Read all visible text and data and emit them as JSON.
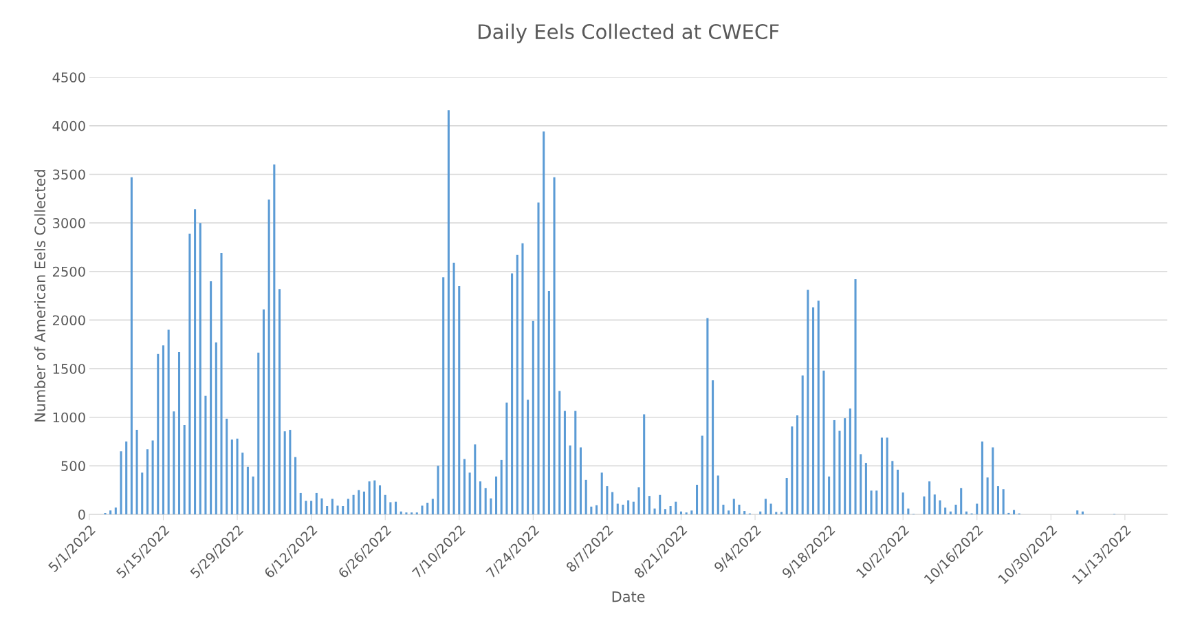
{
  "chart_data": {
    "type": "bar",
    "title": "Daily Eels Collected at CWECF",
    "xlabel": "Date",
    "ylabel": "Number of American Eels Collected",
    "x": [
      "2022-05-04",
      "2022-05-05",
      "2022-05-06",
      "2022-05-07",
      "2022-05-08",
      "2022-05-09",
      "2022-05-10",
      "2022-05-11",
      "2022-05-12",
      "2022-05-13",
      "2022-05-14",
      "2022-05-15",
      "2022-05-16",
      "2022-05-17",
      "2022-05-18",
      "2022-05-19",
      "2022-05-20",
      "2022-05-21",
      "2022-05-22",
      "2022-05-23",
      "2022-05-24",
      "2022-05-25",
      "2022-05-26",
      "2022-05-27",
      "2022-05-28",
      "2022-05-29",
      "2022-05-30",
      "2022-05-31",
      "2022-06-01",
      "2022-06-02",
      "2022-06-03",
      "2022-06-04",
      "2022-06-05",
      "2022-06-06",
      "2022-06-07",
      "2022-06-08",
      "2022-06-09",
      "2022-06-10",
      "2022-06-11",
      "2022-06-12",
      "2022-06-13",
      "2022-06-14",
      "2022-06-15",
      "2022-06-16",
      "2022-06-17",
      "2022-06-18",
      "2022-06-19",
      "2022-06-20",
      "2022-06-21",
      "2022-06-22",
      "2022-06-23",
      "2022-06-24",
      "2022-06-25",
      "2022-06-26",
      "2022-06-27",
      "2022-06-28",
      "2022-06-29",
      "2022-06-30",
      "2022-07-01",
      "2022-07-02",
      "2022-07-03",
      "2022-07-04",
      "2022-07-05",
      "2022-07-06",
      "2022-07-07",
      "2022-07-08",
      "2022-07-09",
      "2022-07-10",
      "2022-07-11",
      "2022-07-12",
      "2022-07-13",
      "2022-07-14",
      "2022-07-15",
      "2022-07-16",
      "2022-07-17",
      "2022-07-18",
      "2022-07-19",
      "2022-07-20",
      "2022-07-21",
      "2022-07-22",
      "2022-07-23",
      "2022-07-24",
      "2022-07-25",
      "2022-07-26",
      "2022-07-27",
      "2022-07-28",
      "2022-07-29",
      "2022-07-30",
      "2022-07-31",
      "2022-08-01",
      "2022-08-02",
      "2022-08-03",
      "2022-08-04",
      "2022-08-05",
      "2022-08-06",
      "2022-08-07",
      "2022-08-08",
      "2022-08-09",
      "2022-08-10",
      "2022-08-11",
      "2022-08-12",
      "2022-08-13",
      "2022-08-14",
      "2022-08-15",
      "2022-08-16",
      "2022-08-17",
      "2022-08-18",
      "2022-08-19",
      "2022-08-20",
      "2022-08-21",
      "2022-08-22",
      "2022-08-23",
      "2022-08-24",
      "2022-08-25",
      "2022-08-26",
      "2022-08-27",
      "2022-08-28",
      "2022-08-29",
      "2022-08-30",
      "2022-08-31",
      "2022-09-01",
      "2022-09-02",
      "2022-09-03",
      "2022-09-04",
      "2022-09-05",
      "2022-09-06",
      "2022-09-07",
      "2022-09-08",
      "2022-09-09",
      "2022-09-10",
      "2022-09-11",
      "2022-09-12",
      "2022-09-13",
      "2022-09-14",
      "2022-09-15",
      "2022-09-16",
      "2022-09-17",
      "2022-09-18",
      "2022-09-19",
      "2022-09-20",
      "2022-09-21",
      "2022-09-22",
      "2022-09-23",
      "2022-09-24",
      "2022-09-25",
      "2022-09-26",
      "2022-09-27",
      "2022-09-28",
      "2022-09-29",
      "2022-09-30",
      "2022-10-01",
      "2022-10-02",
      "2022-10-03",
      "2022-10-04",
      "2022-10-05",
      "2022-10-06",
      "2022-10-07",
      "2022-10-08",
      "2022-10-09",
      "2022-10-10",
      "2022-10-11",
      "2022-10-12",
      "2022-10-13",
      "2022-10-14",
      "2022-10-15",
      "2022-10-16",
      "2022-10-17",
      "2022-10-18",
      "2022-10-19",
      "2022-10-20",
      "2022-10-21",
      "2022-10-22",
      "2022-10-23",
      "2022-10-24",
      "2022-11-04",
      "2022-11-05",
      "2022-11-11"
    ],
    "series": [
      {
        "color": "#5b9bd5",
        "values": [
          15,
          40,
          70,
          650,
          750,
          3470,
          870,
          430,
          670,
          760,
          1650,
          1740,
          1900,
          1060,
          1670,
          920,
          2890,
          3140,
          3000,
          1220,
          2400,
          1770,
          2690,
          985,
          770,
          780,
          635,
          490,
          390,
          1665,
          2110,
          3240,
          3600,
          2320,
          855,
          870,
          590,
          220,
          140,
          140,
          220,
          165,
          85,
          160,
          90,
          85,
          160,
          200,
          250,
          235,
          340,
          350,
          300,
          200,
          125,
          130,
          30,
          20,
          20,
          20,
          90,
          120,
          160,
          500,
          2440,
          4160,
          2590,
          2350,
          570,
          430,
          720,
          340,
          270,
          165,
          390,
          560,
          1150,
          2480,
          2670,
          2790,
          1180,
          1990,
          3210,
          3940,
          2300,
          3470,
          1270,
          1065,
          710,
          1065,
          690,
          355,
          80,
          95,
          430,
          290,
          230,
          110,
          100,
          145,
          130,
          280,
          1030,
          190,
          60,
          200,
          55,
          85,
          130,
          30,
          20,
          40,
          305,
          810,
          2020,
          1380,
          400,
          100,
          40,
          160,
          100,
          35,
          10,
          0,
          30,
          160,
          110,
          25,
          25,
          375,
          905,
          1020,
          1430,
          2310,
          2130,
          2200,
          1480,
          390,
          970,
          860,
          990,
          1090,
          2420,
          620,
          530,
          245,
          245,
          790,
          790,
          550,
          460,
          225,
          60,
          5,
          0,
          185,
          340,
          205,
          145,
          70,
          30,
          100,
          270,
          30,
          10,
          110,
          750,
          380,
          690,
          290,
          260,
          15,
          45,
          10,
          40,
          30,
          5
        ]
      }
    ],
    "xlim": [
      "2022-05-01",
      "2022-11-21"
    ],
    "xticks": [
      {
        "value": "2022-05-01",
        "label": "5/1/2022"
      },
      {
        "value": "2022-05-15",
        "label": "5/15/2022"
      },
      {
        "value": "2022-05-29",
        "label": "5/29/2022"
      },
      {
        "value": "2022-06-12",
        "label": "6/12/2022"
      },
      {
        "value": "2022-06-26",
        "label": "6/26/2022"
      },
      {
        "value": "2022-07-10",
        "label": "7/10/2022"
      },
      {
        "value": "2022-07-24",
        "label": "7/24/2022"
      },
      {
        "value": "2022-08-07",
        "label": "8/7/2022"
      },
      {
        "value": "2022-08-21",
        "label": "8/21/2022"
      },
      {
        "value": "2022-09-04",
        "label": "9/4/2022"
      },
      {
        "value": "2022-09-18",
        "label": "9/18/2022"
      },
      {
        "value": "2022-10-02",
        "label": "10/2/2022"
      },
      {
        "value": "2022-10-16",
        "label": "10/16/2022"
      },
      {
        "value": "2022-10-30",
        "label": "10/30/2022"
      },
      {
        "value": "2022-11-13",
        "label": "11/13/2022"
      }
    ],
    "ylim": [
      0,
      4500
    ],
    "yticks": [
      0,
      500,
      1000,
      1500,
      2000,
      2500,
      3000,
      3500,
      4000,
      4500
    ],
    "grid": "y"
  }
}
